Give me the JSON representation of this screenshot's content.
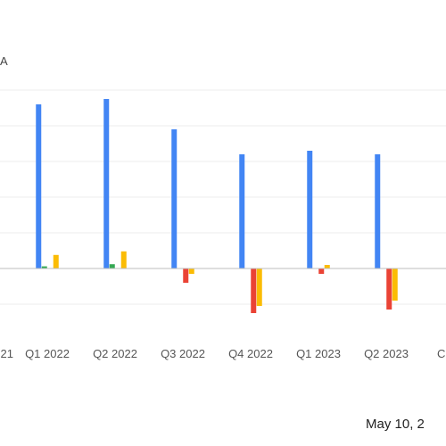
{
  "chart_data": {
    "type": "bar",
    "corner_label": "A",
    "date_text": "May 10, 2",
    "categories": [
      "Q1 2022",
      "Q2 2022",
      "Q3 2022",
      "Q4 2022",
      "Q1 2023",
      "Q2 2023"
    ],
    "edge_tick_left": "21",
    "edge_tick_right": "C",
    "series": [
      {
        "color": "#4285f4",
        "values": [
          4.6,
          4.75,
          3.9,
          3.2,
          3.3,
          3.2
        ]
      },
      {
        "color": "#34a853",
        "values": [
          0.06,
          0.12,
          0,
          0,
          0,
          0
        ]
      },
      {
        "color": "#ea4335",
        "values": [
          0,
          0,
          -0.4,
          -1.25,
          -0.15,
          -1.15
        ]
      },
      {
        "color": "#fbbc04",
        "values": [
          0.38,
          0.48,
          -0.15,
          -1.05,
          0.1,
          -0.9
        ]
      }
    ],
    "ylim": [
      -1.5,
      5
    ],
    "grid": true
  }
}
